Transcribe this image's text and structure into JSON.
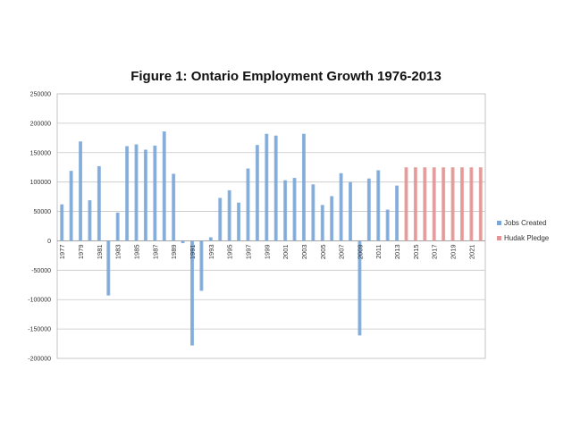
{
  "chart_data": {
    "type": "bar",
    "title": "Figure 1: Ontario Employment Growth 1976-2013",
    "xlabel": "",
    "ylabel": "",
    "ylim": [
      -200000,
      250000
    ],
    "yticks": [
      250000,
      200000,
      150000,
      100000,
      50000,
      0,
      -50000,
      -100000,
      -150000,
      -200000
    ],
    "ytick_labels": [
      "250000",
      "200000",
      "150000",
      "100000",
      "50000",
      "0",
      "-50000",
      "-100000",
      "-150000",
      "-200000"
    ],
    "grid": true,
    "legend_position": "right",
    "categories": [
      "1977",
      "1978",
      "1979",
      "1980",
      "1981",
      "1982",
      "1983",
      "1984",
      "1985",
      "1986",
      "1987",
      "1988",
      "1989",
      "1990",
      "1991",
      "1992",
      "1993",
      "1994",
      "1995",
      "1996",
      "1997",
      "1998",
      "1999",
      "2000",
      "2001",
      "2002",
      "2003",
      "2004",
      "2005",
      "2006",
      "2007",
      "2008",
      "2009",
      "2010",
      "2011",
      "2012",
      "2013",
      "2014",
      "2015",
      "2016",
      "2017",
      "2018",
      "2019",
      "2020",
      "2021",
      "2022"
    ],
    "x_tick_labels": [
      "1977",
      "1979",
      "1981",
      "1983",
      "1985",
      "1987",
      "1989",
      "1991",
      "1993",
      "1995",
      "1997",
      "1999",
      "2001",
      "2003",
      "2005",
      "2007",
      "2009",
      "2011",
      "2013",
      "2015",
      "2017",
      "2019",
      "2021"
    ],
    "series": [
      {
        "name": "Jobs Created",
        "color": "#7aa7d8",
        "values": [
          62000,
          119000,
          169000,
          69000,
          127000,
          -93000,
          48000,
          161000,
          164000,
          155000,
          162000,
          186000,
          114000,
          -4000,
          -178000,
          -85000,
          6000,
          73000,
          86000,
          65000,
          123000,
          163000,
          182000,
          179000,
          103000,
          107000,
          182000,
          96000,
          61000,
          76000,
          115000,
          100000,
          -161000,
          106000,
          120000,
          53000,
          94000,
          null,
          null,
          null,
          null,
          null,
          null,
          null,
          null,
          null
        ]
      },
      {
        "name": "Hudak Pledge",
        "color": "#e39494",
        "values": [
          null,
          null,
          null,
          null,
          null,
          null,
          null,
          null,
          null,
          null,
          null,
          null,
          null,
          null,
          null,
          null,
          null,
          null,
          null,
          null,
          null,
          null,
          null,
          null,
          null,
          null,
          null,
          null,
          null,
          null,
          null,
          null,
          null,
          null,
          null,
          null,
          null,
          125000,
          125000,
          125000,
          125000,
          125000,
          125000,
          125000,
          125000,
          125000
        ]
      }
    ]
  }
}
